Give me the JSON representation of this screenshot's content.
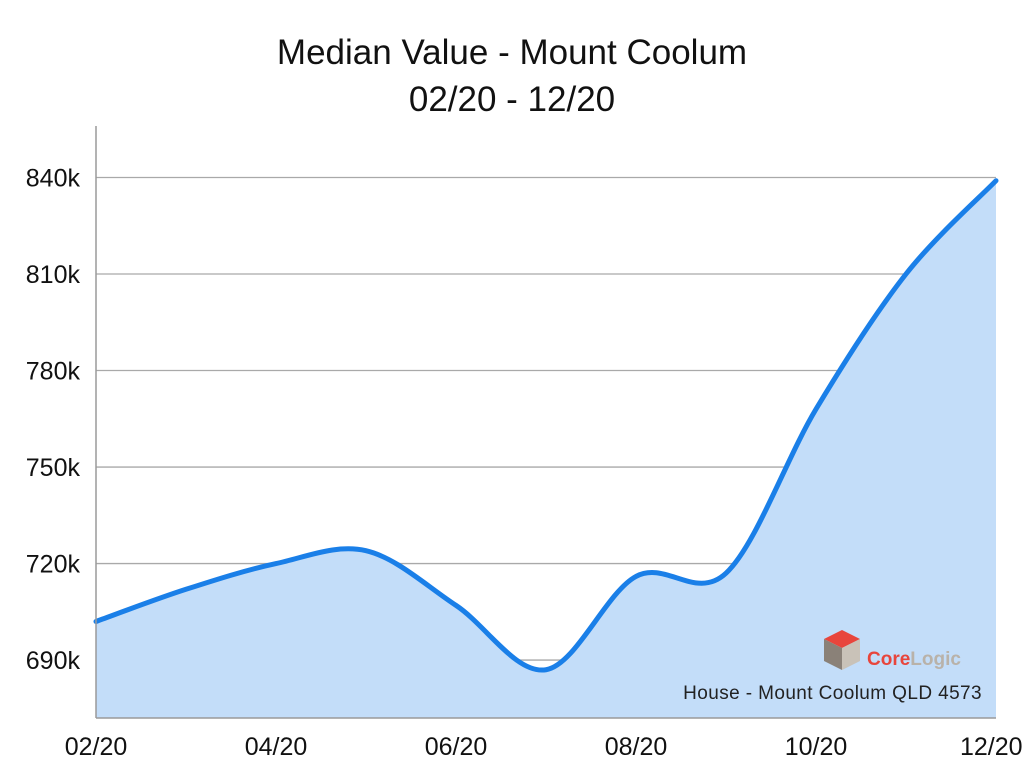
{
  "chart_data": {
    "type": "area",
    "title": "Median Value - Mount Coolum",
    "subtitle": "02/20 - 12/20",
    "xlabel": "",
    "ylabel": "",
    "x_ticks": [
      "02/20",
      "04/20",
      "06/20",
      "08/20",
      "10/20",
      "12/20"
    ],
    "y_ticks": [
      "690k",
      "720k",
      "750k",
      "780k",
      "810k",
      "840k"
    ],
    "ylim": [
      672000,
      856000
    ],
    "grid": true,
    "series": [
      {
        "x": [
          "2020-02",
          "2020-03",
          "2020-04",
          "2020-05",
          "2020-06",
          "2020-07",
          "2020-08",
          "2020-09",
          "2020-10",
          "2020-11",
          "2020-12"
        ],
        "values": [
          702000,
          712000,
          720000,
          724000,
          707000,
          687000,
          716000,
          717000,
          768000,
          810000,
          839000
        ]
      }
    ],
    "colors": {
      "line": "#1a7fe8",
      "fill": "#c3ddf9",
      "grid": "#a9a9a9"
    },
    "annotation": "House - Mount Coolum QLD 4573",
    "logo": {
      "name": "corelogic-logo",
      "text_core": "Core",
      "text_logic": "Logic"
    }
  }
}
